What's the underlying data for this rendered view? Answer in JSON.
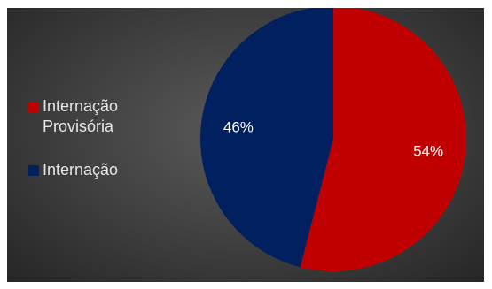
{
  "chart_data": {
    "type": "pie",
    "title": "",
    "series": [
      {
        "name": "Internação Provisória",
        "value": 54,
        "label": "54%",
        "color": "#c00000"
      },
      {
        "name": "Internação",
        "value": 46,
        "label": "46%",
        "color": "#002060"
      }
    ],
    "start_angle_deg": 0,
    "direction": "clockwise",
    "legend_position": "left"
  },
  "colors": {
    "background": "#404040",
    "text": "#e6e6e6"
  }
}
